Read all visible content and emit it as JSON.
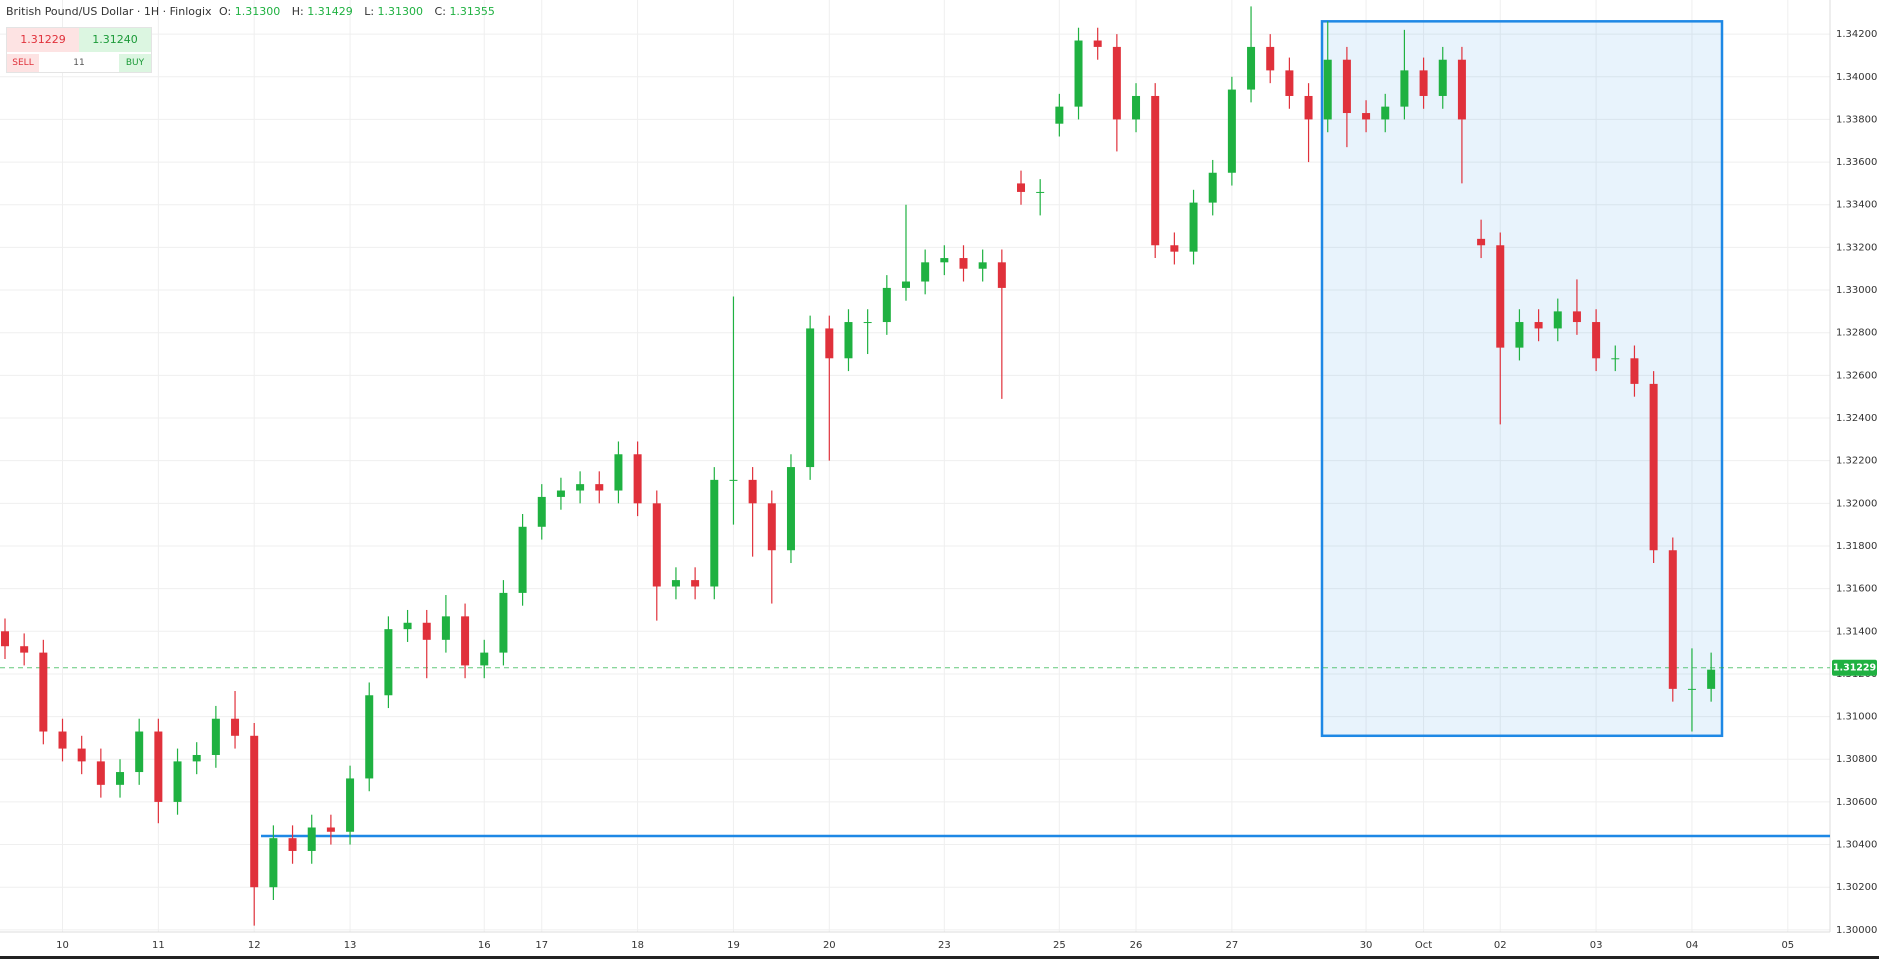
{
  "header": {
    "title": "British Pound/US Dollar · 1H · Finlogix",
    "open_label": "O:",
    "open": "1.31300",
    "high_label": "H:",
    "high": "1.31429",
    "low_label": "L:",
    "low": "1.31300",
    "close_label": "C:",
    "close": "1.31355"
  },
  "trade_panel": {
    "sell_price": "1.31229",
    "buy_price": "1.31240",
    "sell_label": "SELL",
    "spread": "11",
    "buy_label": "BUY"
  },
  "chart_data": {
    "type": "candlestick",
    "categories": [
      null,
      null,
      null,
      "10",
      null,
      null,
      null,
      null,
      "11",
      null,
      null,
      null,
      null,
      "12",
      null,
      null,
      null,
      null,
      "13",
      null,
      null,
      null,
      null,
      null,
      null,
      "16",
      null,
      null,
      "17",
      null,
      null,
      null,
      null,
      "18",
      null,
      null,
      null,
      null,
      "19",
      null,
      null,
      null,
      null,
      "20",
      null,
      null,
      null,
      null,
      null,
      "23",
      null,
      null,
      null,
      null,
      null,
      "25",
      null,
      null,
      null,
      "26",
      null,
      null,
      null,
      null,
      "27",
      null,
      null,
      null,
      null,
      null,
      null,
      "30",
      null,
      null,
      "Oct",
      null,
      null,
      null,
      "02",
      null,
      null,
      null,
      null,
      "03",
      null,
      null,
      null,
      null,
      "04",
      null,
      null,
      null,
      null,
      "05"
    ],
    "open": [
      1.314,
      1.3133,
      1.313,
      1.3093,
      1.3085,
      1.3079,
      1.3068,
      1.3074,
      1.3093,
      1.306,
      1.3079,
      1.3082,
      1.3099,
      1.3091,
      1.302,
      1.3043,
      1.3037,
      1.3048,
      1.3046,
      1.3071,
      1.311,
      1.3141,
      1.3144,
      1.3136,
      1.3147,
      1.3124,
      1.313,
      1.3158,
      1.3189,
      1.3203,
      1.3206,
      1.3209,
      1.3206,
      1.3223,
      1.32,
      1.3161,
      1.3164,
      1.3161,
      1.3211,
      1.3211,
      1.32,
      1.3178,
      1.3217,
      1.3282,
      1.3268,
      1.3285,
      1.3285,
      1.3301,
      1.3304,
      1.3313,
      1.3315,
      1.331,
      1.3313,
      1.335,
      1.3346,
      1.3378,
      1.3386,
      1.3417,
      1.3414,
      1.338,
      1.3391,
      1.3321,
      1.3318,
      1.3341,
      1.3355,
      1.3394,
      1.3414,
      1.3403,
      1.3391,
      1.338,
      1.3408,
      1.3383,
      1.338,
      1.3386,
      1.3403,
      1.3391,
      1.3408,
      1.3324,
      1.3321,
      1.3273,
      1.3285,
      1.3282,
      1.329,
      1.3285,
      1.3268,
      1.3268,
      1.3256,
      1.3178,
      1.3113,
      1.3113,
      null,
      null,
      null,
      null
    ],
    "high": [
      1.3146,
      1.3139,
      1.3136,
      1.3099,
      1.3091,
      1.3085,
      1.308,
      1.3099,
      1.3099,
      1.3085,
      1.3088,
      1.3105,
      1.3112,
      1.3097,
      1.3049,
      1.3049,
      1.3054,
      1.3054,
      1.3077,
      1.3116,
      1.3147,
      1.315,
      1.315,
      1.3157,
      1.3153,
      1.3136,
      1.3164,
      1.3195,
      1.3209,
      1.3212,
      1.3215,
      1.3215,
      1.3229,
      1.3229,
      1.3206,
      1.317,
      1.317,
      1.3217,
      1.3297,
      1.3217,
      1.3206,
      1.3223,
      1.3288,
      1.3288,
      1.3291,
      1.3291,
      1.3307,
      1.334,
      1.3319,
      1.3321,
      1.3321,
      1.3319,
      1.3319,
      1.3356,
      1.3352,
      1.3392,
      1.3423,
      1.3423,
      1.342,
      1.3397,
      1.3397,
      1.3327,
      1.3347,
      1.3361,
      1.34,
      1.3433,
      1.342,
      1.3409,
      1.3397,
      1.3426,
      1.3414,
      1.3389,
      1.3392,
      1.3422,
      1.3409,
      1.3414,
      1.3414,
      1.3333,
      1.3327,
      1.3291,
      1.3291,
      1.3296,
      1.3305,
      1.3291,
      1.3274,
      1.3274,
      1.3262,
      1.3184,
      1.3132,
      1.313,
      null,
      null,
      null,
      null
    ],
    "low": [
      1.3127,
      1.3124,
      1.3087,
      1.3079,
      1.3073,
      1.3062,
      1.3062,
      1.3068,
      1.305,
      1.3054,
      1.3073,
      1.3076,
      1.3085,
      1.3002,
      1.3014,
      1.3031,
      1.3031,
      1.304,
      1.304,
      1.3065,
      1.3104,
      1.3135,
      1.3118,
      1.313,
      1.3118,
      1.3118,
      1.3124,
      1.3152,
      1.3183,
      1.3197,
      1.32,
      1.32,
      1.32,
      1.3194,
      1.3145,
      1.3155,
      1.3155,
      1.3155,
      1.319,
      1.3175,
      1.3153,
      1.3172,
      1.3211,
      1.322,
      1.3262,
      1.327,
      1.3279,
      1.3295,
      1.3298,
      1.3307,
      1.3304,
      1.3304,
      1.3249,
      1.334,
      1.3335,
      1.3372,
      1.338,
      1.3408,
      1.3365,
      1.3374,
      1.3315,
      1.3312,
      1.3312,
      1.3335,
      1.3349,
      1.3388,
      1.3397,
      1.3385,
      1.336,
      1.3374,
      1.3367,
      1.3374,
      1.3374,
      1.338,
      1.3385,
      1.3385,
      1.335,
      1.3315,
      1.3237,
      1.3267,
      1.3276,
      1.3276,
      1.3279,
      1.3262,
      1.3262,
      1.325,
      1.3172,
      1.3107,
      1.3093,
      1.3107,
      null,
      null,
      null,
      null
    ],
    "close": [
      1.3133,
      1.313,
      1.3093,
      1.3085,
      1.3079,
      1.3068,
      1.3074,
      1.3093,
      1.306,
      1.3079,
      1.3082,
      1.3099,
      1.3091,
      1.302,
      1.3043,
      1.3037,
      1.3048,
      1.3046,
      1.3071,
      1.311,
      1.3141,
      1.3144,
      1.3136,
      1.3147,
      1.3124,
      1.313,
      1.3158,
      1.3189,
      1.3203,
      1.3206,
      1.3209,
      1.3206,
      1.3223,
      1.32,
      1.3161,
      1.3164,
      1.3161,
      1.3211,
      1.3211,
      1.32,
      1.3178,
      1.3217,
      1.3282,
      1.3268,
      1.3285,
      1.3285,
      1.3301,
      1.3304,
      1.3313,
      1.3315,
      1.331,
      1.3313,
      1.3301,
      1.3346,
      1.3346,
      1.3386,
      1.3417,
      1.3414,
      1.338,
      1.3391,
      1.3321,
      1.3318,
      1.3341,
      1.3355,
      1.3394,
      1.3414,
      1.3403,
      1.3391,
      1.338,
      1.3408,
      1.3383,
      1.338,
      1.3386,
      1.3403,
      1.3391,
      1.3408,
      1.338,
      1.3321,
      1.3273,
      1.3285,
      1.3282,
      1.329,
      1.3285,
      1.3268,
      1.3268,
      1.3256,
      1.3178,
      1.3113,
      1.3113,
      1.3122,
      null,
      null,
      null,
      null
    ],
    "up_color": "#1fb141",
    "down_color": "#e0313b",
    "ylim": [
      1.2999,
      1.3436
    ],
    "yticks": [
      {
        "value": 1.3,
        "label": "1.30000"
      },
      {
        "value": 1.302,
        "label": "1.30200"
      },
      {
        "value": 1.304,
        "label": "1.30400"
      },
      {
        "value": 1.306,
        "label": "1.30600"
      },
      {
        "value": 1.308,
        "label": "1.30800"
      },
      {
        "value": 1.31,
        "label": "1.31000"
      },
      {
        "value": 1.312,
        "label": "1.31200"
      },
      {
        "value": 1.314,
        "label": "1.31400"
      },
      {
        "value": 1.316,
        "label": "1.31600"
      },
      {
        "value": 1.318,
        "label": "1.31800"
      },
      {
        "value": 1.32,
        "label": "1.32000"
      },
      {
        "value": 1.322,
        "label": "1.32200"
      },
      {
        "value": 1.324,
        "label": "1.32400"
      },
      {
        "value": 1.326,
        "label": "1.32600"
      },
      {
        "value": 1.328,
        "label": "1.32800"
      },
      {
        "value": 1.33,
        "label": "1.33000"
      },
      {
        "value": 1.332,
        "label": "1.33200"
      },
      {
        "value": 1.334,
        "label": "1.33400"
      },
      {
        "value": 1.336,
        "label": "1.33600"
      },
      {
        "value": 1.338,
        "label": "1.33800"
      },
      {
        "value": 1.34,
        "label": "1.34000"
      },
      {
        "value": 1.342,
        "label": "1.34200"
      }
    ],
    "grid": true,
    "current_price": 1.31229,
    "drawings": {
      "rectangle": {
        "top": 1.3426,
        "bottom": 1.3091,
        "color": "#1e88e5"
      },
      "horizontal_line": 1.3044
    }
  }
}
